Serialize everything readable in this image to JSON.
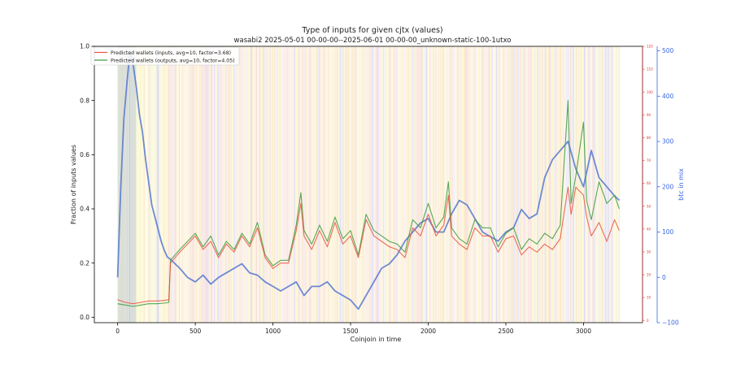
{
  "chart_data": {
    "type": "line",
    "title": "Type of inputs for given cjtx (values)",
    "subtitle": "wasabi2 2025-05-01 00-00-00--2025-06-01 00-00-00_unknown-static-100-1utxo",
    "xlabel": "Coinjoin in time",
    "ylabel": "Fraction of inputs values",
    "y2label": "btc in mix",
    "xlim": [
      -150,
      3380
    ],
    "ylim": [
      -0.02,
      1.0
    ],
    "y2lim": [
      -100,
      510
    ],
    "y3lim": [
      -1,
      120
    ],
    "x_ticks": [
      "0",
      "500",
      "1000",
      "1500",
      "2000",
      "2500",
      "3000"
    ],
    "x_tick_values": [
      0,
      500,
      1000,
      1500,
      2000,
      2500,
      3000
    ],
    "y_ticks": [
      "0.0",
      "0.2",
      "0.4",
      "0.6",
      "0.8",
      "1.0"
    ],
    "y_tick_values": [
      0.0,
      0.2,
      0.4,
      0.6,
      0.8,
      1.0
    ],
    "y2_ticks": [
      "−100",
      "0",
      "100",
      "200",
      "300",
      "400",
      "500"
    ],
    "y2_tick_values": [
      -100,
      0,
      100,
      200,
      300,
      400,
      500
    ],
    "y3_ticks": [
      "0",
      "10",
      "20",
      "30",
      "40",
      "50",
      "60",
      "70",
      "80",
      "90",
      "100",
      "110",
      "120"
    ],
    "y3_tick_values": [
      0,
      10,
      20,
      30,
      40,
      50,
      60,
      70,
      80,
      90,
      100,
      110,
      120
    ],
    "legend_position": "top-left",
    "legend": [
      "Predicted wallets (inputs, avg=10, factor=3.68)",
      "Predicted wallets (outputs, avg=10, factor=4.05)"
    ],
    "colors": {
      "inputs": "#e8553f",
      "outputs": "#3c9a3c",
      "overlap": "#6e6a1e",
      "btc_in_mix": "#4a6fd0",
      "right_axis": "#3a66e0",
      "far_right_axis": "#e03030",
      "background_orange": "#f6d99a",
      "background_yellow": "#f8f0a0",
      "background_pink": "#f3c2c2",
      "background_blue": "#b9bff2"
    },
    "series": [
      {
        "name": "Predicted wallets (inputs, avg=10, factor=3.68)",
        "axis": "left",
        "x": [
          0,
          50,
          100,
          150,
          200,
          250,
          300,
          330,
          340,
          400,
          450,
          500,
          550,
          600,
          650,
          700,
          750,
          800,
          850,
          900,
          950,
          1000,
          1050,
          1100,
          1150,
          1180,
          1200,
          1250,
          1300,
          1350,
          1400,
          1450,
          1500,
          1550,
          1600,
          1650,
          1700,
          1750,
          1800,
          1850,
          1900,
          1950,
          2000,
          2050,
          2100,
          2130,
          2150,
          2200,
          2250,
          2300,
          2350,
          2400,
          2450,
          2500,
          2550,
          2600,
          2650,
          2700,
          2750,
          2800,
          2850,
          2900,
          2920,
          2950,
          3000,
          3020,
          3050,
          3100,
          3150,
          3200,
          3230
        ],
        "y": [
          0.065,
          0.055,
          0.05,
          0.055,
          0.06,
          0.06,
          0.062,
          0.065,
          0.2,
          0.24,
          0.27,
          0.3,
          0.25,
          0.28,
          0.22,
          0.27,
          0.24,
          0.3,
          0.26,
          0.33,
          0.22,
          0.18,
          0.2,
          0.2,
          0.32,
          0.42,
          0.3,
          0.25,
          0.32,
          0.26,
          0.35,
          0.27,
          0.3,
          0.22,
          0.36,
          0.3,
          0.28,
          0.26,
          0.25,
          0.22,
          0.33,
          0.3,
          0.38,
          0.3,
          0.34,
          0.45,
          0.3,
          0.27,
          0.25,
          0.33,
          0.3,
          0.3,
          0.24,
          0.29,
          0.3,
          0.23,
          0.26,
          0.24,
          0.27,
          0.25,
          0.29,
          0.48,
          0.38,
          0.48,
          0.45,
          0.37,
          0.3,
          0.35,
          0.28,
          0.36,
          0.32
        ]
      },
      {
        "name": "Predicted wallets (outputs, avg=10, factor=4.05)",
        "axis": "left",
        "x": [
          0,
          50,
          100,
          150,
          200,
          250,
          300,
          330,
          340,
          400,
          450,
          500,
          550,
          600,
          650,
          700,
          750,
          800,
          850,
          900,
          950,
          1000,
          1050,
          1100,
          1150,
          1180,
          1200,
          1250,
          1300,
          1350,
          1400,
          1450,
          1500,
          1550,
          1600,
          1650,
          1700,
          1750,
          1800,
          1850,
          1900,
          1950,
          2000,
          2050,
          2100,
          2130,
          2150,
          2200,
          2250,
          2300,
          2350,
          2400,
          2450,
          2500,
          2550,
          2600,
          2650,
          2700,
          2750,
          2800,
          2850,
          2900,
          2920,
          2950,
          3000,
          3020,
          3050,
          3100,
          3150,
          3200,
          3230
        ],
        "y": [
          0.05,
          0.045,
          0.04,
          0.045,
          0.05,
          0.05,
          0.052,
          0.055,
          0.21,
          0.25,
          0.28,
          0.31,
          0.26,
          0.3,
          0.23,
          0.28,
          0.25,
          0.31,
          0.27,
          0.35,
          0.23,
          0.19,
          0.21,
          0.21,
          0.34,
          0.46,
          0.32,
          0.27,
          0.34,
          0.28,
          0.37,
          0.29,
          0.32,
          0.23,
          0.38,
          0.32,
          0.3,
          0.28,
          0.27,
          0.24,
          0.36,
          0.33,
          0.42,
          0.33,
          0.37,
          0.5,
          0.33,
          0.29,
          0.27,
          0.36,
          0.33,
          0.33,
          0.26,
          0.31,
          0.33,
          0.25,
          0.29,
          0.27,
          0.31,
          0.29,
          0.34,
          0.8,
          0.42,
          0.52,
          0.72,
          0.43,
          0.36,
          0.5,
          0.42,
          0.45,
          0.4
        ]
      },
      {
        "name": "btc in mix",
        "axis": "right",
        "x": [
          0,
          20,
          40,
          60,
          80,
          100,
          120,
          140,
          160,
          180,
          200,
          220,
          250,
          280,
          300,
          320,
          340,
          400,
          450,
          500,
          550,
          600,
          650,
          700,
          750,
          800,
          850,
          900,
          950,
          1000,
          1050,
          1100,
          1150,
          1200,
          1250,
          1300,
          1350,
          1400,
          1450,
          1500,
          1550,
          1600,
          1650,
          1700,
          1750,
          1800,
          1850,
          1900,
          1950,
          2000,
          2050,
          2100,
          2150,
          2200,
          2250,
          2300,
          2350,
          2400,
          2450,
          2500,
          2550,
          2600,
          2650,
          2700,
          2750,
          2800,
          2850,
          2900,
          2950,
          3000,
          3050,
          3100,
          3150,
          3200,
          3230
        ],
        "y": [
          0,
          200,
          350,
          430,
          500,
          470,
          420,
          360,
          320,
          260,
          210,
          160,
          120,
          80,
          60,
          45,
          40,
          20,
          0,
          -10,
          5,
          -15,
          0,
          10,
          20,
          30,
          10,
          5,
          -10,
          -20,
          -30,
          -20,
          -10,
          -40,
          -20,
          -20,
          -10,
          -30,
          -40,
          -50,
          -70,
          -40,
          -10,
          20,
          30,
          50,
          80,
          100,
          120,
          130,
          100,
          100,
          140,
          170,
          160,
          130,
          100,
          90,
          80,
          100,
          110,
          150,
          130,
          140,
          220,
          260,
          280,
          300,
          240,
          200,
          280,
          220,
          200,
          180,
          170
        ]
      }
    ]
  }
}
